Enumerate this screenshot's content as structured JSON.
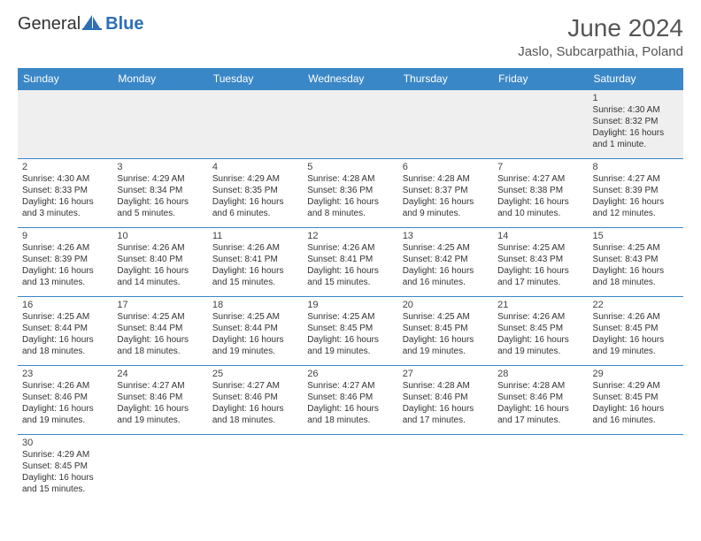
{
  "brand": {
    "part1": "General",
    "part2": "Blue"
  },
  "title": "June 2024",
  "location": "Jaslo, Subcarpathia, Poland",
  "colors": {
    "header_bg": "#3a87c7",
    "header_fg": "#ffffff",
    "row_alt_bg": "#efefef",
    "border": "#3a87c7",
    "brand_blue": "#2d6fb5",
    "text": "#333333"
  },
  "dayHeaders": [
    "Sunday",
    "Monday",
    "Tuesday",
    "Wednesday",
    "Thursday",
    "Friday",
    "Saturday"
  ],
  "weeks": [
    [
      null,
      null,
      null,
      null,
      null,
      null,
      {
        "d": "1",
        "sr": "4:30 AM",
        "ss": "8:32 PM",
        "dl": "16 hours and 1 minute."
      }
    ],
    [
      {
        "d": "2",
        "sr": "4:30 AM",
        "ss": "8:33 PM",
        "dl": "16 hours and 3 minutes."
      },
      {
        "d": "3",
        "sr": "4:29 AM",
        "ss": "8:34 PM",
        "dl": "16 hours and 5 minutes."
      },
      {
        "d": "4",
        "sr": "4:29 AM",
        "ss": "8:35 PM",
        "dl": "16 hours and 6 minutes."
      },
      {
        "d": "5",
        "sr": "4:28 AM",
        "ss": "8:36 PM",
        "dl": "16 hours and 8 minutes."
      },
      {
        "d": "6",
        "sr": "4:28 AM",
        "ss": "8:37 PM",
        "dl": "16 hours and 9 minutes."
      },
      {
        "d": "7",
        "sr": "4:27 AM",
        "ss": "8:38 PM",
        "dl": "16 hours and 10 minutes."
      },
      {
        "d": "8",
        "sr": "4:27 AM",
        "ss": "8:39 PM",
        "dl": "16 hours and 12 minutes."
      }
    ],
    [
      {
        "d": "9",
        "sr": "4:26 AM",
        "ss": "8:39 PM",
        "dl": "16 hours and 13 minutes."
      },
      {
        "d": "10",
        "sr": "4:26 AM",
        "ss": "8:40 PM",
        "dl": "16 hours and 14 minutes."
      },
      {
        "d": "11",
        "sr": "4:26 AM",
        "ss": "8:41 PM",
        "dl": "16 hours and 15 minutes."
      },
      {
        "d": "12",
        "sr": "4:26 AM",
        "ss": "8:41 PM",
        "dl": "16 hours and 15 minutes."
      },
      {
        "d": "13",
        "sr": "4:25 AM",
        "ss": "8:42 PM",
        "dl": "16 hours and 16 minutes."
      },
      {
        "d": "14",
        "sr": "4:25 AM",
        "ss": "8:43 PM",
        "dl": "16 hours and 17 minutes."
      },
      {
        "d": "15",
        "sr": "4:25 AM",
        "ss": "8:43 PM",
        "dl": "16 hours and 18 minutes."
      }
    ],
    [
      {
        "d": "16",
        "sr": "4:25 AM",
        "ss": "8:44 PM",
        "dl": "16 hours and 18 minutes."
      },
      {
        "d": "17",
        "sr": "4:25 AM",
        "ss": "8:44 PM",
        "dl": "16 hours and 18 minutes."
      },
      {
        "d": "18",
        "sr": "4:25 AM",
        "ss": "8:44 PM",
        "dl": "16 hours and 19 minutes."
      },
      {
        "d": "19",
        "sr": "4:25 AM",
        "ss": "8:45 PM",
        "dl": "16 hours and 19 minutes."
      },
      {
        "d": "20",
        "sr": "4:25 AM",
        "ss": "8:45 PM",
        "dl": "16 hours and 19 minutes."
      },
      {
        "d": "21",
        "sr": "4:26 AM",
        "ss": "8:45 PM",
        "dl": "16 hours and 19 minutes."
      },
      {
        "d": "22",
        "sr": "4:26 AM",
        "ss": "8:45 PM",
        "dl": "16 hours and 19 minutes."
      }
    ],
    [
      {
        "d": "23",
        "sr": "4:26 AM",
        "ss": "8:46 PM",
        "dl": "16 hours and 19 minutes."
      },
      {
        "d": "24",
        "sr": "4:27 AM",
        "ss": "8:46 PM",
        "dl": "16 hours and 19 minutes."
      },
      {
        "d": "25",
        "sr": "4:27 AM",
        "ss": "8:46 PM",
        "dl": "16 hours and 18 minutes."
      },
      {
        "d": "26",
        "sr": "4:27 AM",
        "ss": "8:46 PM",
        "dl": "16 hours and 18 minutes."
      },
      {
        "d": "27",
        "sr": "4:28 AM",
        "ss": "8:46 PM",
        "dl": "16 hours and 17 minutes."
      },
      {
        "d": "28",
        "sr": "4:28 AM",
        "ss": "8:46 PM",
        "dl": "16 hours and 17 minutes."
      },
      {
        "d": "29",
        "sr": "4:29 AM",
        "ss": "8:45 PM",
        "dl": "16 hours and 16 minutes."
      }
    ],
    [
      {
        "d": "30",
        "sr": "4:29 AM",
        "ss": "8:45 PM",
        "dl": "16 hours and 15 minutes."
      },
      null,
      null,
      null,
      null,
      null,
      null
    ]
  ],
  "labels": {
    "sunrise": "Sunrise:",
    "sunset": "Sunset:",
    "daylight": "Daylight:"
  }
}
